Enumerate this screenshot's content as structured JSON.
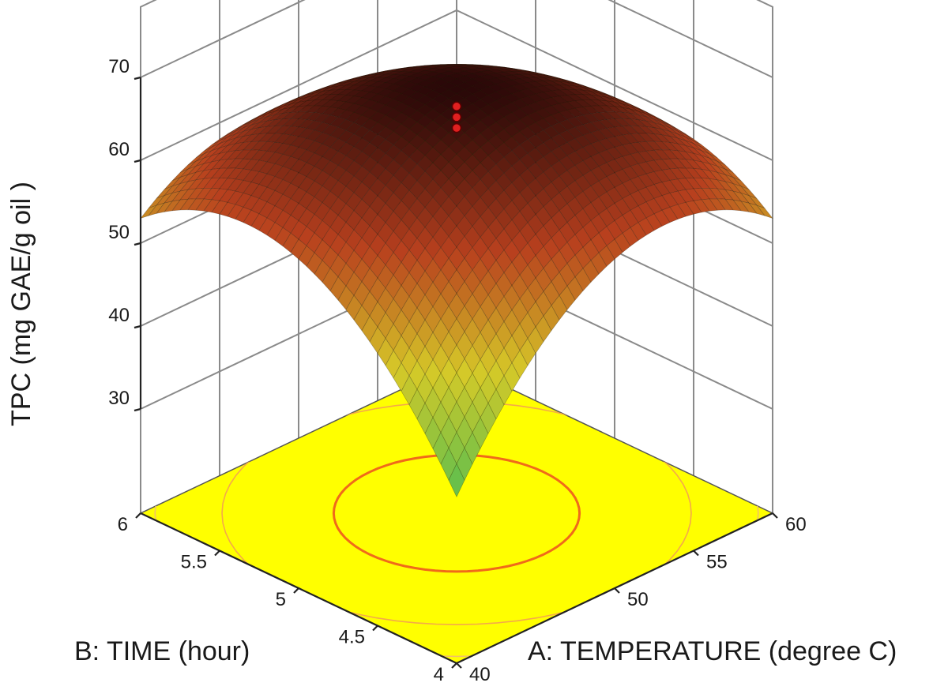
{
  "chart_data": {
    "type": "surface3d",
    "title": "",
    "zlabel": "TPC (mg GAE/g oil )",
    "xlabel": "A: TEMPERATURE (degree C)",
    "ylabel": "B: TIME (hour)",
    "x_range": [
      40,
      60
    ],
    "y_range": [
      4,
      6
    ],
    "z_ticks": [
      "30",
      "40",
      "50",
      "60",
      "70"
    ],
    "x_ticks": [
      "40",
      "50",
      "55",
      "60"
    ],
    "y_ticks": [
      "4",
      "4.5",
      "5",
      "5.5",
      "6"
    ],
    "grid": true,
    "surface": {
      "corner_values": {
        "x40_y4": 29,
        "x60_y4": 53,
        "x40_y6": 53,
        "x60_y6": 46
      },
      "max_value": 69,
      "max_at": {
        "x": 50,
        "y": 5
      },
      "colormap": [
        "#2fb08a",
        "#6ac04a",
        "#d6c928",
        "#b8401e",
        "#2a0808"
      ]
    },
    "floor_contours": {
      "fill": "#ffff00",
      "levels": [
        {
          "color": "#f06a1a",
          "emphasis": true
        },
        {
          "color": "#f4a94a",
          "emphasis": false
        },
        {
          "color": "#f1c168",
          "emphasis": false
        },
        {
          "color": "#9fe05a",
          "emphasis": false
        }
      ]
    },
    "design_points": [
      {
        "x": 50,
        "y": 5,
        "z": 66.5
      },
      {
        "x": 50,
        "y": 5,
        "z": 65.2
      },
      {
        "x": 50,
        "y": 5,
        "z": 63.9
      }
    ],
    "point_color": "#e02020"
  }
}
